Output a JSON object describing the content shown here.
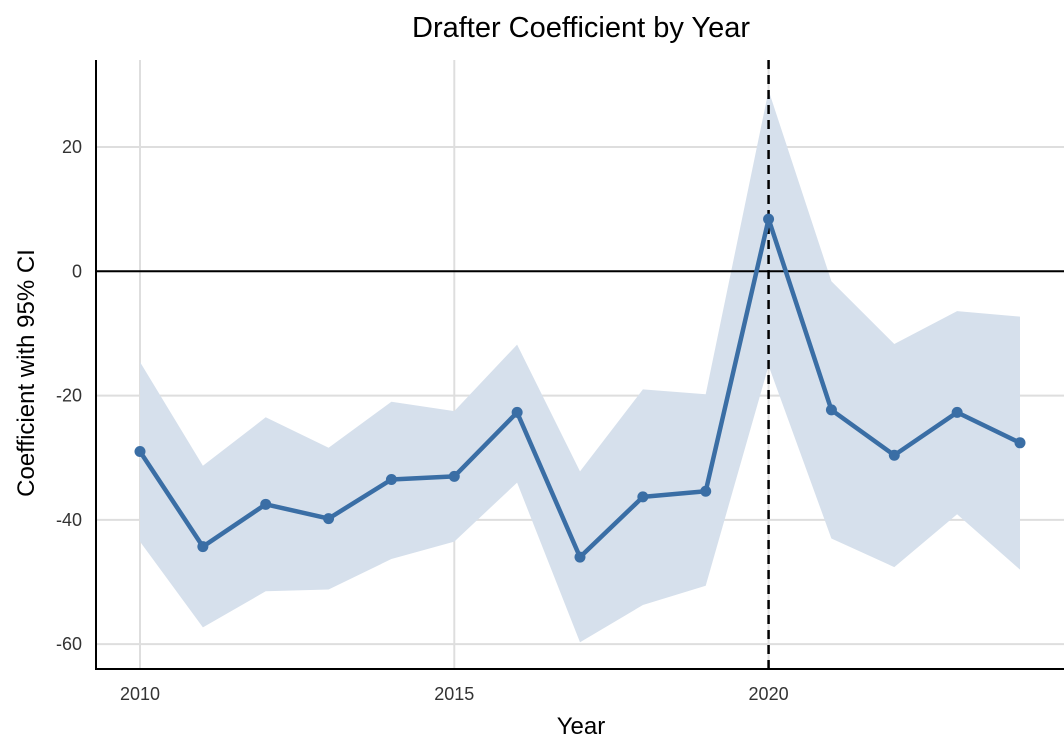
{
  "chart_data": {
    "type": "line",
    "title": "Drafter Coefficient by Year",
    "xlabel": "Year",
    "ylabel": "Coefficient with 95% CI",
    "xlim": [
      2009.3,
      2024.7
    ],
    "ylim": [
      -64,
      34
    ],
    "x_ticks": [
      2010,
      2015,
      2020
    ],
    "x_tick_labels": [
      "2010",
      "2015",
      "2020"
    ],
    "y_ticks": [
      -60,
      -40,
      -20,
      0,
      20
    ],
    "y_tick_labels": [
      "-60",
      "-40",
      "-20",
      "0",
      "20"
    ],
    "grid": true,
    "reference_lines": {
      "horizontal_y": 0,
      "vertical_dashed_x": 2020
    },
    "colors": {
      "line": "#3a6ea5",
      "ribbon": "#d6e0ec",
      "grid": "#dedede",
      "reference": "#000000"
    },
    "series": [
      {
        "x": [
          2010,
          2011,
          2012,
          2013,
          2014,
          2015,
          2016,
          2017,
          2018,
          2019,
          2020,
          2021,
          2022,
          2023,
          2024
        ],
        "values": [
          -29,
          -44.3,
          -37.5,
          -39.8,
          -33.5,
          -33,
          -22.7,
          -46,
          -36.3,
          -35.4,
          8.4,
          -22.3,
          -29.6,
          -22.7,
          -27.6
        ],
        "ci_lower": [
          -43.5,
          -57.3,
          -51.5,
          -51.2,
          -46.3,
          -43.5,
          -34,
          -59.7,
          -53.7,
          -50.6,
          -15.2,
          -43,
          -47.6,
          -39.1,
          -48
        ],
        "ci_upper": [
          -14.6,
          -31.3,
          -23.5,
          -28.4,
          -21,
          -22.5,
          -11.8,
          -32.2,
          -19,
          -19.8,
          29.1,
          -1.6,
          -11.7,
          -6.4,
          -7.3
        ]
      }
    ]
  }
}
